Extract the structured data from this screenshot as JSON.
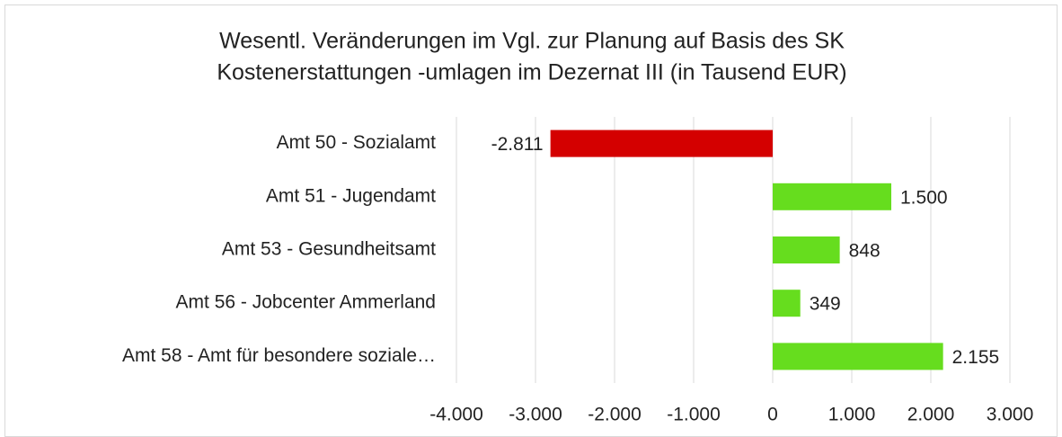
{
  "chart_data": {
    "type": "hbar",
    "title": [
      "Wesentl. Veränderungen im Vgl. zur Planung auf Basis des SK",
      "Kostenerstattungen -umlagen im Dezernat III (in Tausend EUR)"
    ],
    "categories": [
      "Amt 50 - Sozialamt",
      "Amt 51 - Jugendamt",
      "Amt 53 - Gesundheitsamt",
      "Amt 56 - Jobcenter Ammerland",
      "Amt 58 - Amt für besondere soziale…"
    ],
    "values": [
      -2811,
      1500,
      848,
      349,
      2155
    ],
    "value_labels": [
      "-2.811",
      "1.500",
      "848",
      "349",
      "2.155"
    ],
    "colors": [
      "#d40000",
      "#66dd1e",
      "#66dd1e",
      "#66dd1e",
      "#66dd1e"
    ],
    "xlim": [
      -4000,
      3000
    ],
    "xticks": [
      {
        "value": -4000,
        "label": "-4.000"
      },
      {
        "value": -3000,
        "label": "-3.000"
      },
      {
        "value": -2000,
        "label": "-2.000"
      },
      {
        "value": -1000,
        "label": "-1.000"
      },
      0,
      {
        "value": 1000,
        "label": "1.000"
      },
      {
        "value": 2000,
        "label": "2.000"
      },
      {
        "value": 3000,
        "label": "3.000"
      }
    ],
    "grid": true
  }
}
